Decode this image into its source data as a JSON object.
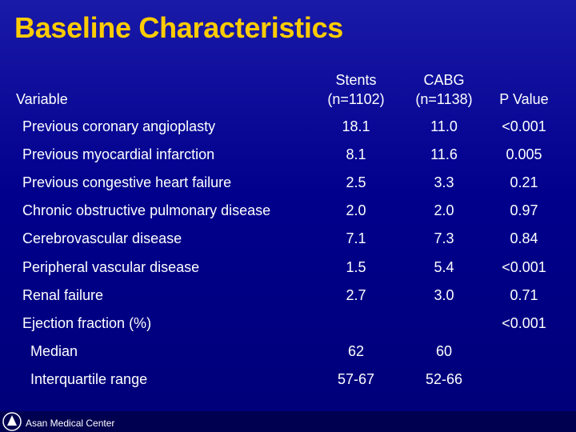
{
  "title": "Baseline Characteristics",
  "table": {
    "header": [
      [
        "Variable"
      ],
      [
        "Stents",
        "(n=1102)"
      ],
      [
        "CABG",
        "(n=1138)"
      ],
      [
        "P Value"
      ]
    ],
    "rows": [
      [
        "Previous coronary angioplasty",
        "18.1",
        "11.0",
        "<0.001"
      ],
      [
        "Previous myocardial infarction",
        "8.1",
        "11.6",
        "0.005"
      ],
      [
        "Previous congestive heart failure",
        "2.5",
        "3.3",
        "0.21"
      ],
      [
        "Chronic obstructive pulmonary disease",
        "2.0",
        "2.0",
        "0.97"
      ],
      [
        "Cerebrovascular disease",
        "7.1",
        "7.3",
        "0.84"
      ],
      [
        "Peripheral vascular disease",
        "1.5",
        "5.4",
        "<0.001"
      ],
      [
        "Renal failure",
        "2.7",
        "3.0",
        "0.71"
      ],
      [
        "Ejection fraction (%)",
        null,
        null,
        "<0.001"
      ]
    ],
    "subrows": [
      [
        "Median",
        "62",
        "60",
        null
      ],
      [
        "Interquartile range",
        "57-67",
        "52-66",
        null
      ]
    ]
  },
  "footer": "Asan Medical Center"
}
